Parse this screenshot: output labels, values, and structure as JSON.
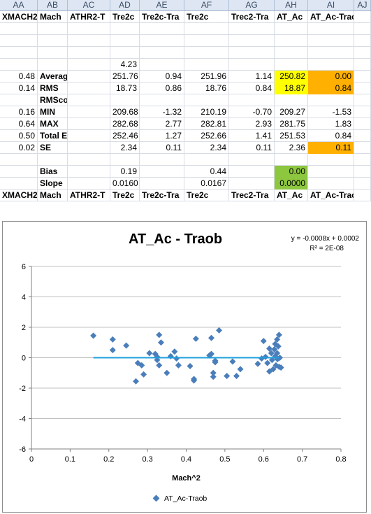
{
  "columns": [
    "AA",
    "AB",
    "AC",
    "AD",
    "AE",
    "AF",
    "AG",
    "AH",
    "AI",
    "AJ"
  ],
  "header_row": [
    "XMACH2",
    "Mach",
    "ATHR2-T",
    "Tre2c",
    "Tre2c-Tra",
    "Tre2c",
    "Trec2-Tra",
    "AT_Ac",
    "AT_Ac-Traob",
    ""
  ],
  "rows": [
    {
      "id": "blank1",
      "cells": [
        "",
        "",
        "",
        "",
        "",
        "",
        "",
        "",
        "",
        ""
      ]
    },
    {
      "id": "blank2",
      "cells": [
        "",
        "",
        "",
        "",
        "",
        "",
        "",
        "",
        "",
        ""
      ]
    },
    {
      "id": "blank3",
      "cells": [
        "",
        "",
        "",
        "",
        "",
        "",
        "",
        "",
        "",
        ""
      ]
    },
    {
      "id": "r423",
      "cells": [
        "",
        "",
        "",
        "4.23",
        "",
        "",
        "",
        "",
        "",
        ""
      ]
    },
    {
      "id": "average",
      "cells": [
        "0.48",
        "Average",
        "",
        "251.76",
        "0.94",
        "251.96",
        "1.14",
        "250.82",
        "0.00",
        ""
      ]
    },
    {
      "id": "rms",
      "cells": [
        "0.14",
        "RMS",
        "",
        "18.73",
        "0.86",
        "18.76",
        "0.84",
        "18.87",
        "0.84",
        ""
      ]
    },
    {
      "id": "rmscorr",
      "cells": [
        "",
        "RMScorr",
        "",
        "",
        "",
        "",
        "",
        "",
        "",
        ""
      ]
    },
    {
      "id": "min",
      "cells": [
        "0.16",
        "MIN",
        "",
        "209.68",
        "-1.32",
        "210.19",
        "-0.70",
        "209.27",
        "-1.53",
        ""
      ]
    },
    {
      "id": "max",
      "cells": [
        "0.64",
        "MAX",
        "",
        "282.68",
        "2.77",
        "282.81",
        "2.93",
        "281.75",
        "1.83",
        ""
      ]
    },
    {
      "id": "totalerr",
      "cells": [
        "0.50",
        "Total Err",
        "",
        "252.46",
        "1.27",
        "252.66",
        "1.41",
        "251.53",
        "0.84",
        ""
      ]
    },
    {
      "id": "se",
      "cells": [
        "0.02",
        "SE",
        "",
        "2.34",
        "0.11",
        "2.34",
        "0.11",
        "2.36",
        "0.11",
        ""
      ]
    },
    {
      "id": "blank4",
      "cells": [
        "",
        "",
        "",
        "",
        "",
        "",
        "",
        "",
        "",
        ""
      ]
    },
    {
      "id": "bias",
      "cells": [
        "",
        "Bias",
        "",
        "0.19",
        "",
        "0.44",
        "",
        "0.00",
        "",
        ""
      ]
    },
    {
      "id": "slope",
      "cells": [
        "",
        "Slope",
        "",
        "0.0160",
        "",
        "0.0167",
        "",
        "0.0000",
        "",
        ""
      ]
    },
    {
      "id": "header2",
      "cells": [
        "XMACH2",
        "Mach",
        "ATHR2-T",
        "Tre2c",
        "Tre2c-Tra",
        "Tre2c",
        "Trec2-Tra",
        "AT_Ac",
        "AT_Ac-Traob",
        ""
      ]
    }
  ],
  "highlights": {
    "yellow": "#ffff00",
    "orange": "#ffb000",
    "green": "#8dc63f"
  },
  "chart_data": {
    "type": "scatter",
    "title": "AT_Ac - Traob",
    "xlabel": "Mach^2",
    "ylabel": "",
    "xlim": [
      0,
      0.8
    ],
    "ylim": [
      -6,
      6
    ],
    "xticks": [
      "0",
      "0.1",
      "0.2",
      "0.3",
      "0.4",
      "0.5",
      "0.6",
      "0.7",
      "0.8"
    ],
    "yticks": [
      "6",
      "4",
      "2",
      "0",
      "-2",
      "-4",
      "-6"
    ],
    "grid": "horizontal",
    "legend": "bottom",
    "trendline": {
      "equation": "y = -0.0008x + 0.0002",
      "r2": "R² = 2E-08",
      "x": [
        0.16,
        0.64
      ],
      "y": [
        0.0,
        0.0
      ],
      "color": "#1fa0dc"
    },
    "marker_color": "#4a7ebb",
    "series": [
      {
        "name": "AT_Ac-Traob",
        "points": [
          [
            0.16,
            1.45
          ],
          [
            0.21,
            1.2
          ],
          [
            0.21,
            0.5
          ],
          [
            0.245,
            0.8
          ],
          [
            0.27,
            -1.55
          ],
          [
            0.275,
            -0.35
          ],
          [
            0.285,
            -0.5
          ],
          [
            0.29,
            -1.1
          ],
          [
            0.305,
            0.3
          ],
          [
            0.32,
            0.25
          ],
          [
            0.325,
            -0.15
          ],
          [
            0.325,
            0.05
          ],
          [
            0.33,
            -0.5
          ],
          [
            0.33,
            1.5
          ],
          [
            0.335,
            1.0
          ],
          [
            0.35,
            -1.0
          ],
          [
            0.36,
            0.1
          ],
          [
            0.37,
            0.4
          ],
          [
            0.375,
            -0.05
          ],
          [
            0.38,
            -0.5
          ],
          [
            0.41,
            -0.55
          ],
          [
            0.42,
            -1.5
          ],
          [
            0.42,
            -1.4
          ],
          [
            0.425,
            1.25
          ],
          [
            0.46,
            0.15
          ],
          [
            0.465,
            0.25
          ],
          [
            0.465,
            1.3
          ],
          [
            0.47,
            -1.0
          ],
          [
            0.47,
            -1.25
          ],
          [
            0.475,
            -0.3
          ],
          [
            0.475,
            -0.2
          ],
          [
            0.485,
            1.8
          ],
          [
            0.505,
            -1.2
          ],
          [
            0.52,
            -0.25
          ],
          [
            0.53,
            -1.2
          ],
          [
            0.54,
            -0.75
          ],
          [
            0.585,
            -0.4
          ],
          [
            0.595,
            -0.05
          ],
          [
            0.6,
            1.1
          ],
          [
            0.605,
            0.05
          ],
          [
            0.61,
            -0.35
          ],
          [
            0.615,
            0.6
          ],
          [
            0.615,
            -0.9
          ],
          [
            0.62,
            0.3
          ],
          [
            0.622,
            -0.15
          ],
          [
            0.625,
            -0.75
          ],
          [
            0.628,
            0.55
          ],
          [
            0.63,
            0.9
          ],
          [
            0.63,
            0.1
          ],
          [
            0.632,
            -0.5
          ],
          [
            0.635,
            1.2
          ],
          [
            0.635,
            0.3
          ],
          [
            0.636,
            -0.1
          ],
          [
            0.638,
            0.75
          ],
          [
            0.64,
            -0.6
          ],
          [
            0.64,
            1.5
          ],
          [
            0.642,
            0.0
          ],
          [
            0.645,
            -0.65
          ]
        ]
      }
    ]
  }
}
